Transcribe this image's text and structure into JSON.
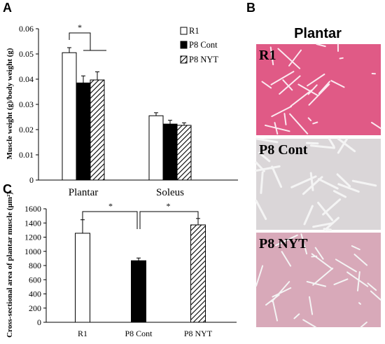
{
  "panel_a": {
    "letter": "A"
  },
  "panel_b": {
    "letter": "B"
  },
  "panel_c": {
    "letter": "C"
  },
  "micrographs": {
    "title": "Plantar",
    "labels": [
      "R1",
      "P8 Cont",
      "P8 NYT"
    ],
    "fill_colors": [
      "#e05a86",
      "#dad6d8",
      "#d8a9b9"
    ],
    "line_color": "#fbe9f0"
  },
  "chart_data": [
    {
      "type": "bar",
      "panel": "A",
      "ylabel": "Muscle weight (g)/body weight (g)",
      "categories": [
        "Plantar",
        "Soleus"
      ],
      "yticks": [
        "0",
        "0.01",
        "0.02",
        "0.03",
        "0.04",
        "0.05",
        "0.06"
      ],
      "ylim": [
        0,
        0.06
      ],
      "legend_position": "top-right",
      "series": [
        {
          "name": "R1",
          "fill": "white",
          "values": [
            0.0505,
            0.0255
          ],
          "errors": [
            0.002,
            0.0012
          ]
        },
        {
          "name": "P8 Cont",
          "fill": "black",
          "values": [
            0.0385,
            0.0222
          ],
          "errors": [
            0.0028,
            0.0015
          ]
        },
        {
          "name": "P8 NYT",
          "fill": "hatched",
          "values": [
            0.0397,
            0.0217
          ],
          "errors": [
            0.0032,
            0.001
          ]
        }
      ],
      "significance": [
        {
          "label": "*",
          "between": [
            "R1",
            "P8 Cont + P8 NYT"
          ],
          "category": "Plantar"
        }
      ]
    },
    {
      "type": "bar",
      "panel": "C",
      "ylabel": "Cross-sectional area of plantar muscle (μm²)",
      "categories": [
        "R1",
        "P8 Cont",
        "P8 NYT"
      ],
      "fills": [
        "white",
        "black",
        "hatched"
      ],
      "values": [
        1255,
        868,
        1373
      ],
      "errors": [
        190,
        38,
        90
      ],
      "yticks": [
        "0",
        "200",
        "400",
        "600",
        "800",
        "1000",
        "1200",
        "1400",
        "1600"
      ],
      "ylim": [
        0,
        1600
      ],
      "significance": [
        {
          "label": "*",
          "between": [
            "R1",
            "P8 Cont"
          ]
        },
        {
          "label": "*",
          "between": [
            "P8 Cont",
            "P8 NYT"
          ]
        }
      ]
    }
  ]
}
